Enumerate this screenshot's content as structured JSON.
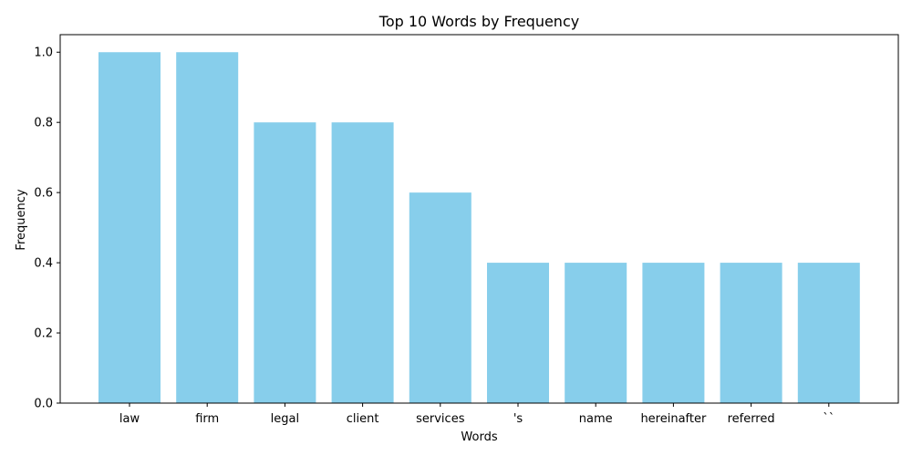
{
  "chart_data": {
    "type": "bar",
    "title": "Top 10 Words by Frequency",
    "xlabel": "Words",
    "ylabel": "Frequency",
    "categories": [
      "law",
      "firm",
      "legal",
      "client",
      "services",
      "'s",
      "name",
      "hereinafter",
      "referred",
      "``"
    ],
    "values": [
      1.0,
      1.0,
      0.8,
      0.8,
      0.6,
      0.4,
      0.4,
      0.4,
      0.4,
      0.4
    ],
    "ylim": [
      0,
      1.05
    ],
    "yticks": [
      "0.0",
      "0.2",
      "0.4",
      "0.6",
      "0.8",
      "1.0"
    ],
    "bar_color": "#87CEEB",
    "grid": false,
    "legend": "none"
  }
}
